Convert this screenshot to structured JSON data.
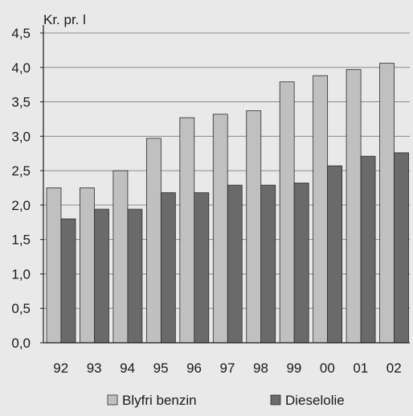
{
  "chart_data": {
    "type": "bar",
    "title": "",
    "ylabel": "Kr. pr. l",
    "xlabel": "",
    "categories": [
      "92",
      "93",
      "94",
      "95",
      "96",
      "97",
      "98",
      "99",
      "00",
      "01",
      "02"
    ],
    "series": [
      {
        "name": "Blyfri benzin",
        "color": "#c0c0c0",
        "values": [
          2.25,
          2.25,
          2.5,
          2.97,
          3.27,
          3.32,
          3.37,
          3.79,
          3.88,
          3.97,
          4.06
        ]
      },
      {
        "name": "Dieselolie",
        "color": "#6a6a6a",
        "values": [
          1.8,
          1.94,
          1.94,
          2.18,
          2.18,
          2.29,
          2.29,
          2.32,
          2.57,
          2.71,
          2.76
        ]
      }
    ],
    "ylim": [
      0,
      4.5
    ],
    "yticks": [
      "0,0",
      "0,5",
      "1,0",
      "1,5",
      "2,0",
      "2,5",
      "3,0",
      "3,5",
      "4,0",
      "4,5"
    ],
    "grid": true,
    "legend_position": "bottom"
  }
}
